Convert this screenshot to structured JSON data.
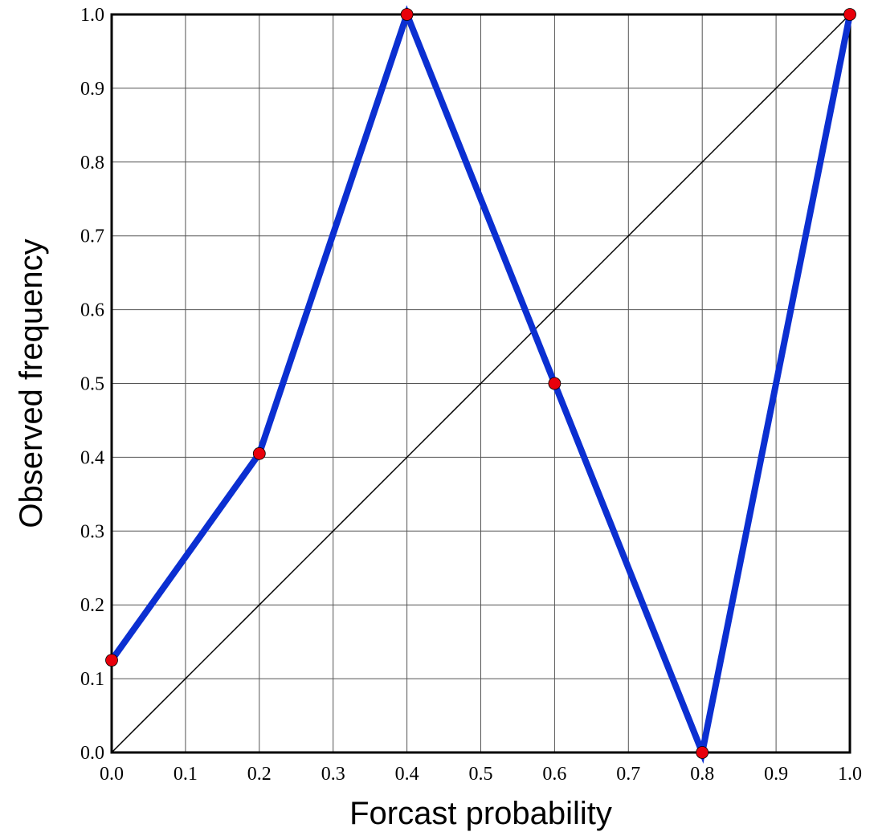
{
  "chart_data": {
    "type": "line",
    "title": "",
    "xlabel": "Forcast probability",
    "ylabel": "Observed frequency",
    "xlim": [
      0.0,
      1.0
    ],
    "ylim": [
      0.0,
      1.0
    ],
    "grid": true,
    "x_ticks": [
      "0.0",
      "0.1",
      "0.2",
      "0.3",
      "0.4",
      "0.5",
      "0.6",
      "0.7",
      "0.8",
      "0.9",
      "1.0"
    ],
    "y_ticks": [
      "0.0",
      "0.1",
      "0.2",
      "0.3",
      "0.4",
      "0.5",
      "0.6",
      "0.7",
      "0.8",
      "0.9",
      "1.0"
    ],
    "reference_line": {
      "from": [
        0.0,
        0.0
      ],
      "to": [
        1.0,
        1.0
      ]
    },
    "series": [
      {
        "x": [
          0.0,
          0.2,
          0.4,
          0.6,
          0.8,
          1.0
        ],
        "y": [
          0.125,
          0.405,
          1.0,
          0.5,
          0.0,
          1.0
        ],
        "line_color": "#0b2fd1",
        "marker_color": "#e8000b"
      }
    ]
  }
}
